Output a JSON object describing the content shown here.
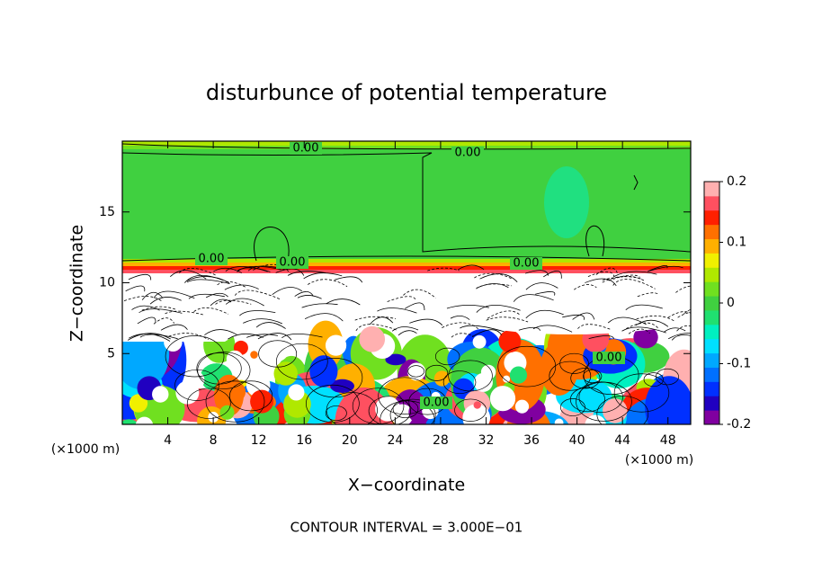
{
  "chart_data": {
    "type": "contour",
    "title": "disturbunce of potential temperature",
    "x_label": "X−coordinate",
    "y_label": "Z−coordinate",
    "x_unit": "(×1000 m)",
    "xlim": [
      0,
      50
    ],
    "xticks": [
      4,
      8,
      12,
      16,
      20,
      24,
      28,
      32,
      36,
      40,
      44,
      48
    ],
    "ylim": [
      0,
      20
    ],
    "yticks": [
      5,
      10,
      15
    ],
    "colorbar": {
      "lim": [
        -0.2,
        0.2
      ],
      "ticks": [
        0.2,
        0.1,
        0,
        -0.1,
        -0.2
      ],
      "colors": [
        "#8000a0",
        "#2000c0",
        "#0030ff",
        "#0070ff",
        "#00a8ff",
        "#00e0ff",
        "#00f0c0",
        "#20e070",
        "#40d040",
        "#70e020",
        "#b0e800",
        "#f0f000",
        "#ffb000",
        "#ff7000",
        "#ff2000",
        "#ff5060",
        "#ffb0b0"
      ]
    },
    "contour_labels": [
      "0.00",
      "0.00",
      "0.00",
      "0.00",
      "0.00",
      "0.00",
      "0.00"
    ],
    "annotation": "CONTOUR INTERVAL = 3.000E−01"
  }
}
